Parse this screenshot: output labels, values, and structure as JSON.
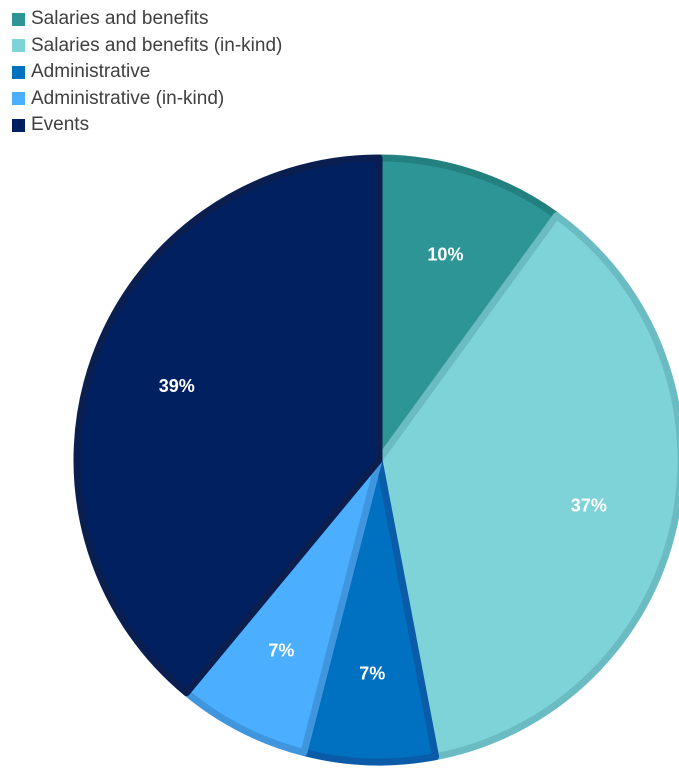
{
  "chart_data": {
    "type": "pie",
    "title": "",
    "legend_position": "top-left",
    "slices": [
      {
        "label": "Salaries and benefits",
        "value": 10,
        "value_label": "10%",
        "color": "#2E9597",
        "edge_color": "#22807F"
      },
      {
        "label": "Salaries and benefits (in-kind)",
        "value": 37,
        "value_label": "37%",
        "color": "#7DD3D8",
        "edge_color": "#6BBBC2"
      },
      {
        "label": "Administrative",
        "value": 7,
        "value_label": "7%",
        "color": "#0070C0",
        "edge_color": "#0A5CA8"
      },
      {
        "label": "Administrative (in-kind)",
        "value": 7,
        "value_label": "7%",
        "color": "#4BAEFF",
        "edge_color": "#3F96DE"
      },
      {
        "label": "Events",
        "value": 39,
        "value_label": "39%",
        "color": "#002060",
        "edge_color": "#0A1E50"
      }
    ]
  }
}
